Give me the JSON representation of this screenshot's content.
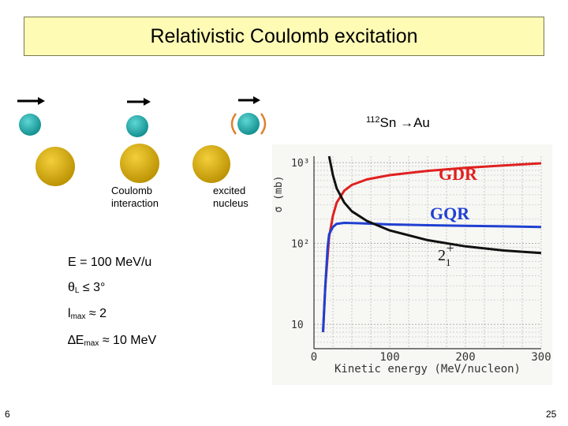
{
  "title": "Relativistic Coulomb excitation",
  "labels": {
    "coulomb_line1": "Coulomb",
    "coulomb_line2": "interaction",
    "excited_line1": "excited",
    "excited_line2": "nucleus"
  },
  "reaction": {
    "mass_number": "112",
    "text": "Sn →Au"
  },
  "params": {
    "energy": "E = 100 MeV/u",
    "theta_symbol": "θ",
    "theta_sub": "L",
    "theta_value": " ≤ 3°",
    "l_symbol": "l",
    "l_sub": "max",
    "l_value": " ≈ 2",
    "de_symbol": "∆E",
    "de_sub": "max",
    "de_value": " ≈ 10 MeV"
  },
  "page": {
    "left_number": "6",
    "right_number": "25"
  },
  "colors": {
    "title_bg": "#fefbb4",
    "projectile": "#1aa0a0",
    "target": "#d4a900",
    "excitation_brackets": "#e08030"
  },
  "chart_data": {
    "type": "line",
    "xlabel": "Kinetic energy (MeV/nucleon)",
    "ylabel": "σ (mb)",
    "xlim": [
      0,
      300
    ],
    "yscale": "log",
    "ylim": [
      5,
      1200
    ],
    "xticks": [
      "0",
      "100",
      "200",
      "300"
    ],
    "yticks": [
      "10",
      "10²",
      "10³"
    ],
    "grid": true,
    "series": [
      {
        "name": "GDR",
        "color": "#e02020",
        "x": [
          12,
          15,
          20,
          25,
          30,
          40,
          50,
          70,
          100,
          150,
          200,
          250,
          300
        ],
        "y": [
          8,
          30,
          120,
          220,
          320,
          450,
          530,
          620,
          700,
          790,
          860,
          920,
          980
        ]
      },
      {
        "name": "GQR",
        "color": "#2040d0",
        "x": [
          12,
          15,
          18,
          20,
          25,
          30,
          40,
          60,
          80,
          100,
          150,
          200,
          250,
          300
        ],
        "y": [
          8,
          30,
          90,
          130,
          160,
          175,
          180,
          178,
          175,
          172,
          168,
          165,
          163,
          160
        ]
      },
      {
        "name": "2₁⁺",
        "color": "#111111",
        "x": [
          20,
          25,
          30,
          40,
          50,
          70,
          100,
          150,
          200,
          250,
          300
        ],
        "y": [
          1200,
          700,
          480,
          320,
          250,
          190,
          145,
          110,
          92,
          82,
          76
        ]
      }
    ]
  }
}
